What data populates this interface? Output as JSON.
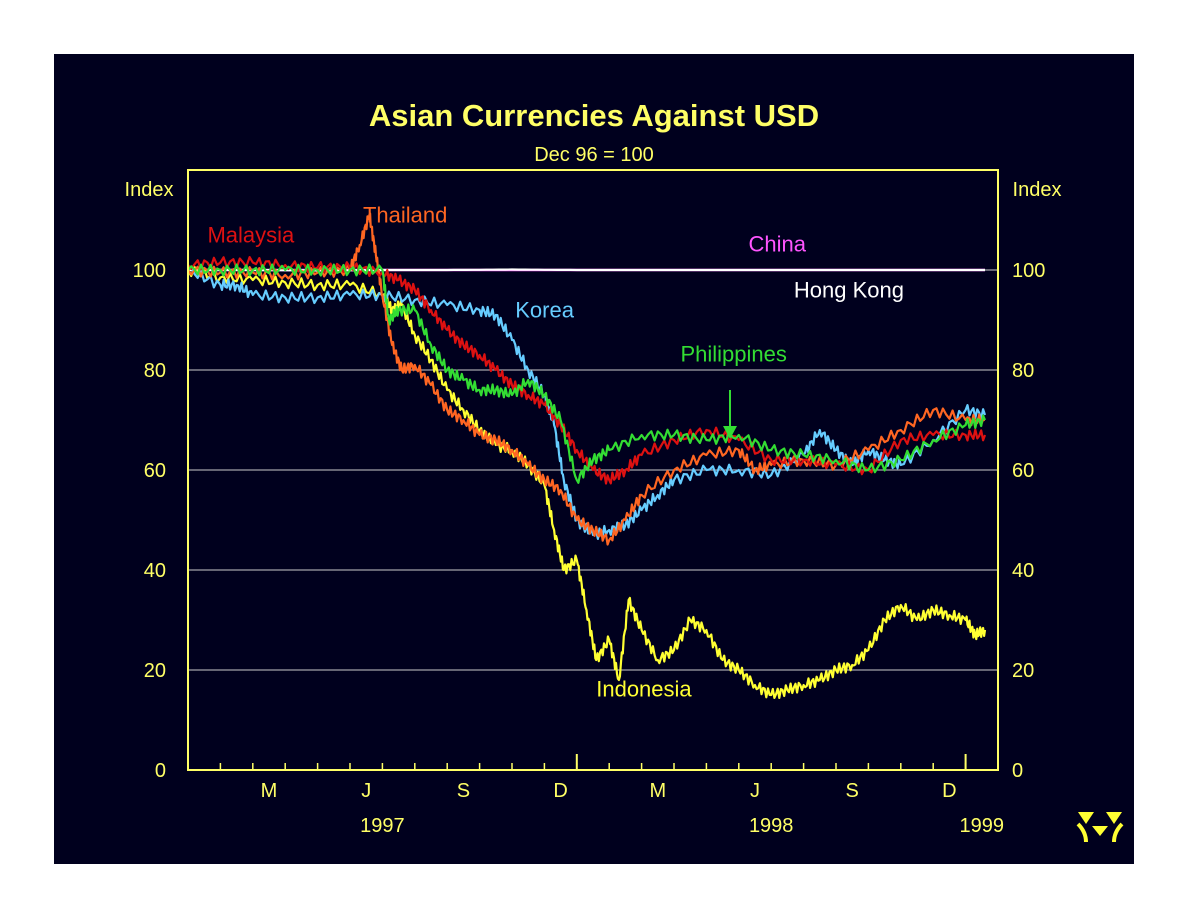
{
  "colors": {
    "background": "#00001e",
    "axis": "#ffff66",
    "gridline": "#ffffff",
    "text_yellow": "#ffff66"
  },
  "logo": {
    "icon": "rba-logo-icon"
  },
  "chart_data": {
    "type": "line",
    "title": "Asian Currencies Against USD",
    "subtitle": "Dec 96 = 100",
    "ylabel_left": "Index",
    "ylabel_right": "Index",
    "ylim": [
      0,
      120
    ],
    "yticks": [
      0,
      20,
      40,
      60,
      80,
      100
    ],
    "grid": true,
    "xlim": [
      0,
      25
    ],
    "xticks": [
      {
        "x": 2.5,
        "label": "M"
      },
      {
        "x": 5.5,
        "label": "J"
      },
      {
        "x": 8.5,
        "label": "S"
      },
      {
        "x": 11.5,
        "label": "D"
      },
      {
        "x": 14.5,
        "label": "M"
      },
      {
        "x": 17.5,
        "label": "J"
      },
      {
        "x": 20.5,
        "label": "S"
      },
      {
        "x": 23.5,
        "label": "D"
      }
    ],
    "year_labels": [
      {
        "x": 6,
        "label": "1997"
      },
      {
        "x": 18,
        "label": "1998"
      },
      {
        "x": 24.5,
        "label": "1999"
      }
    ],
    "series": [
      {
        "name": "China",
        "color": "#ff55ff",
        "label_pos": [
          17.3,
          103.7
        ],
        "x": [
          0,
          2,
          4,
          6,
          8,
          10,
          12,
          14,
          16,
          18,
          20,
          22,
          24,
          24.6
        ],
        "y": [
          100,
          100,
          100,
          100,
          100,
          100,
          100,
          100,
          100,
          100,
          100,
          100,
          100,
          100
        ]
      },
      {
        "name": "Hong Kong",
        "color": "#ffffff",
        "label_pos": [
          18.7,
          94.5
        ],
        "x": [
          0,
          2,
          4,
          6,
          8,
          10,
          12,
          14,
          16,
          18,
          20,
          22,
          24,
          24.6
        ],
        "y": [
          100,
          100,
          99.9,
          100,
          100,
          100.1,
          100,
          100,
          100,
          100,
          100,
          100,
          100,
          100
        ]
      },
      {
        "name": "Malaysia",
        "color": "#dd1111",
        "label_pos": [
          0.6,
          105.5
        ],
        "x": [
          0,
          1,
          2,
          3,
          4,
          5,
          6,
          6.5,
          7,
          7.5,
          8,
          8.5,
          9,
          9.5,
          10,
          10.5,
          11,
          11.5,
          12,
          12.5,
          13,
          13.5,
          14,
          15,
          16,
          17,
          18,
          19,
          20,
          21,
          22,
          23,
          24,
          24.6
        ],
        "y": [
          101,
          101.5,
          101.5,
          101,
          100.5,
          100.5,
          99.5,
          98,
          96,
          92,
          88,
          85,
          83,
          80,
          77,
          75,
          73,
          69,
          64,
          60,
          58,
          60,
          63,
          66,
          68,
          66,
          62,
          62,
          61,
          60,
          66,
          67,
          67,
          67
        ]
      },
      {
        "name": "Thailand",
        "color": "#ff6622",
        "label_pos": [
          5.4,
          109.5
        ],
        "x": [
          0,
          1,
          2,
          3,
          4,
          5,
          5.3,
          5.6,
          5.8,
          6,
          6.3,
          6.6,
          7,
          7.5,
          8,
          8.5,
          9,
          9.5,
          10,
          10.5,
          11,
          11.5,
          12,
          12.5,
          13,
          13.5,
          14,
          15,
          16,
          17,
          17.5,
          18,
          19,
          20,
          21,
          22,
          23,
          24,
          24.6
        ],
        "y": [
          100,
          99.5,
          99.5,
          99,
          99.5,
          100,
          105,
          111,
          103,
          95,
          85,
          80,
          81,
          77,
          72,
          70,
          67,
          66,
          64,
          61,
          58,
          56,
          50,
          48,
          46,
          50,
          55,
          60,
          63,
          64,
          60,
          61,
          62,
          61,
          64,
          68,
          72,
          70,
          70
        ]
      },
      {
        "name": "Korea",
        "color": "#66ccff",
        "label_pos": [
          10.1,
          90.5
        ],
        "x": [
          0,
          1,
          1.5,
          2,
          3,
          4,
          5,
          6,
          7,
          8,
          9,
          9.5,
          10,
          10.5,
          11,
          11.3,
          11.6,
          12,
          12.5,
          13,
          13.5,
          14,
          14.5,
          15,
          16,
          17,
          18,
          19,
          19.5,
          20,
          20.5,
          21,
          21.5,
          22,
          23,
          24,
          24.6
        ],
        "y": [
          100,
          97,
          97,
          95,
          94.5,
          94.5,
          95,
          95,
          94,
          93,
          92,
          91,
          86,
          80,
          75,
          69,
          58,
          50,
          47,
          48,
          49,
          52,
          55,
          58,
          60,
          60,
          59,
          63,
          68,
          64,
          61,
          64,
          62,
          61,
          66,
          72,
          71
        ]
      },
      {
        "name": "Philippines",
        "color": "#33dd33",
        "label_pos": [
          15.2,
          81.7
        ],
        "x": [
          0,
          1,
          2,
          3,
          4,
          5,
          6,
          6.2,
          6.5,
          7,
          7.5,
          8,
          8.5,
          9,
          9.5,
          10,
          10.5,
          11,
          11.5,
          12,
          12.5,
          13,
          14,
          15,
          16,
          17,
          18,
          19,
          20,
          21,
          22,
          23,
          24,
          24.6
        ],
        "y": [
          100,
          100,
          100,
          100,
          100,
          100,
          100,
          90,
          92,
          92,
          85,
          80,
          78,
          76,
          76,
          75,
          78,
          75,
          70,
          58,
          62,
          64,
          67,
          67,
          66,
          67,
          64,
          63,
          62,
          60,
          62,
          66,
          69,
          70
        ]
      },
      {
        "name": "Indonesia",
        "color": "#ffff33",
        "label_pos": [
          12.6,
          14.7
        ],
        "x": [
          0,
          1,
          2,
          3,
          4,
          5,
          6,
          6.3,
          6.6,
          7,
          7.5,
          8,
          8.5,
          9,
          9.5,
          10,
          10.5,
          11,
          11.3,
          11.6,
          12,
          12.3,
          12.6,
          13,
          13.3,
          13.6,
          14,
          14.5,
          15,
          15.5,
          16,
          16.5,
          17,
          17.5,
          18,
          18.5,
          19,
          19.5,
          20,
          20.5,
          21,
          21.5,
          22,
          22.5,
          23,
          23.5,
          24,
          24.3,
          24.6
        ],
        "y": [
          100,
          98.5,
          98,
          97.5,
          97,
          97,
          95,
          92,
          93,
          87,
          82,
          76,
          72,
          68,
          65,
          64,
          61,
          57,
          48,
          40,
          42,
          32,
          22,
          26,
          18,
          34,
          28,
          22,
          24,
          30,
          28,
          22,
          20,
          17,
          15,
          16,
          17,
          18,
          20,
          21,
          24,
          30,
          33,
          30,
          32,
          31,
          30,
          27,
          28
        ]
      }
    ]
  }
}
